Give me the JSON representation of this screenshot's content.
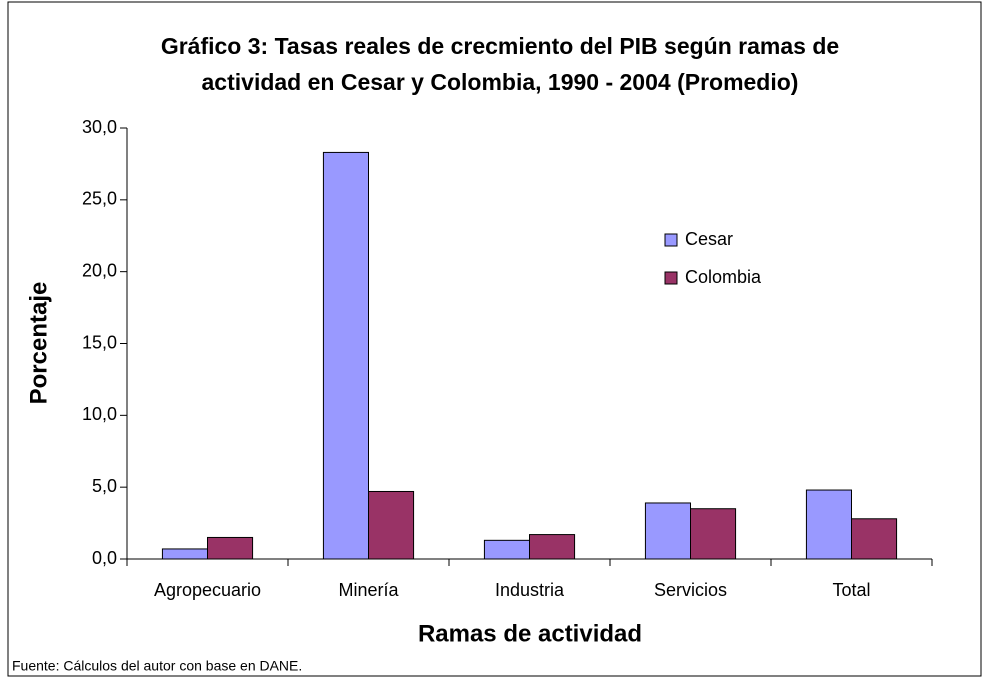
{
  "chart_data": {
    "type": "bar",
    "title": [
      "Gráfico 3: Tasas reales de crecmiento del PIB según ramas de",
      "actividad en Cesar y Colombia, 1990 - 2004 (Promedio)"
    ],
    "x_label": "Ramas de actividad",
    "y_label": "Porcentaje",
    "source": "Fuente: Cálculos del autor con base en DANE.",
    "categories": [
      "Agropecuario",
      "Minería",
      "Industria",
      "Servicios",
      "Total"
    ],
    "series": [
      {
        "name": "Cesar",
        "color": "#9999ff",
        "values": [
          0.7,
          28.3,
          1.3,
          3.9,
          4.8
        ]
      },
      {
        "name": "Colombia",
        "color": "#993366",
        "values": [
          1.5,
          4.7,
          1.7,
          3.5,
          2.8
        ]
      }
    ],
    "ylim": [
      0,
      30
    ],
    "yticks": [
      {
        "value": 0,
        "label": "0,0"
      },
      {
        "value": 5,
        "label": "5,0"
      },
      {
        "value": 10,
        "label": "10,0"
      },
      {
        "value": 15,
        "label": "15,0"
      },
      {
        "value": 20,
        "label": "20,0"
      },
      {
        "value": 25,
        "label": "25,0"
      },
      {
        "value": 30,
        "label": "30,0"
      }
    ],
    "grid": false,
    "legend": "right"
  }
}
